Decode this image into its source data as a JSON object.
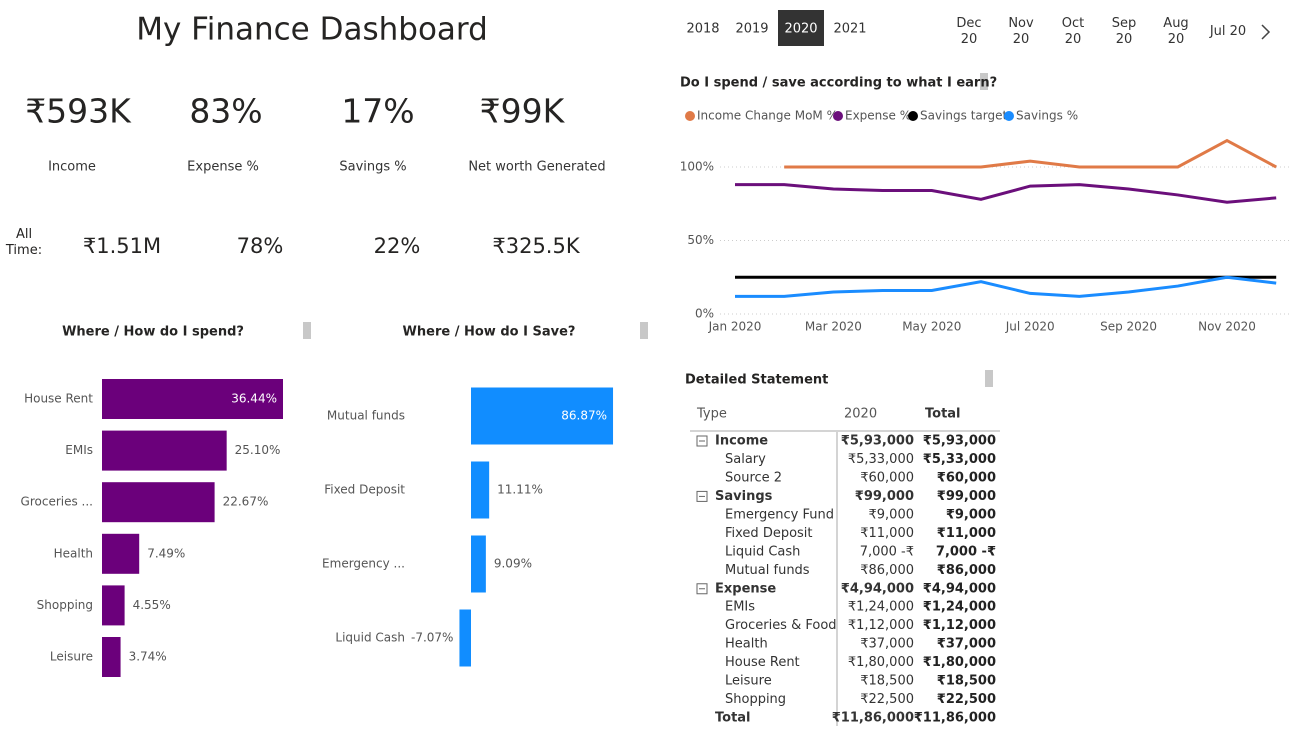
{
  "header": {
    "title": "My Finance Dashboard"
  },
  "year_slicer": {
    "years": [
      "2018",
      "2019",
      "2020",
      "2021"
    ],
    "selected": 2
  },
  "month_slicer": {
    "months": [
      "Dec 20",
      "Nov 20",
      "Oct 20",
      "Sep 20",
      "Aug 20",
      "Jul 20"
    ]
  },
  "kpis": [
    {
      "value": "₹593K",
      "label": "Income"
    },
    {
      "value": "83%",
      "label": "Expense %"
    },
    {
      "value": "17%",
      "label": "Savings %"
    },
    {
      "value": "₹99K",
      "label": "Net worth Generated"
    }
  ],
  "all_time": {
    "label": "All Time:",
    "values": [
      "₹1.51M",
      "78%",
      "22%",
      "₹325.5K"
    ]
  },
  "chart_data": [
    {
      "type": "line",
      "title": "Do I spend / save according to what I earn?",
      "categories": [
        "Jan 2020",
        null,
        "Mar 2020",
        null,
        "May 2020",
        null,
        "Jul 2020",
        null,
        "Sep 2020",
        null,
        "Nov 2020",
        null
      ],
      "series": [
        {
          "name": "Income Change MoM %",
          "color": "#e07a47",
          "values": [
            null,
            100,
            100,
            100,
            100,
            100,
            104,
            100,
            100,
            100,
            118,
            100
          ]
        },
        {
          "name": "Expense %",
          "color": "#6b0f7b",
          "values": [
            88,
            88,
            85,
            84,
            84,
            78,
            87,
            88,
            85,
            81,
            76,
            79
          ]
        },
        {
          "name": "Savings target",
          "color": "#000000",
          "values": [
            25,
            25,
            25,
            25,
            25,
            25,
            25,
            25,
            25,
            25,
            25,
            25
          ]
        },
        {
          "name": "Savings %",
          "color": "#1a8cff",
          "values": [
            12,
            12,
            15,
            16,
            16,
            22,
            14,
            12,
            15,
            19,
            25,
            21
          ]
        }
      ],
      "ylim": [
        0,
        120
      ],
      "yticks": [
        {
          "value": 0,
          "label": "0%"
        },
        {
          "value": 50,
          "label": "50%"
        },
        {
          "value": 100,
          "label": "100%"
        }
      ],
      "grid": true,
      "legend": "top"
    },
    {
      "type": "bar",
      "orientation": "horizontal",
      "title": "Where / How do I spend?",
      "categories": [
        "House Rent",
        "EMIs",
        "Groceries ...",
        "Health",
        "Shopping",
        "Leisure"
      ],
      "values": [
        36.44,
        25.1,
        22.67,
        7.49,
        4.55,
        3.74
      ],
      "value_labels": [
        "36.44%",
        "25.10%",
        "22.67%",
        "7.49%",
        "4.55%",
        "3.74%"
      ],
      "color": "#6b007b"
    },
    {
      "type": "bar",
      "orientation": "horizontal",
      "title": "Where / How do I Save?",
      "categories": [
        "Mutual funds",
        "Fixed Deposit",
        "Emergency ...",
        "Liquid Cash"
      ],
      "values": [
        86.87,
        11.11,
        9.09,
        -7.07
      ],
      "value_labels": [
        "86.87%",
        "11.11%",
        "9.09%",
        "-7.07%"
      ],
      "color": "#118dff"
    }
  ],
  "table": {
    "title": "Detailed Statement",
    "columns": [
      "Type",
      "2020",
      "Total"
    ],
    "rows": [
      {
        "kind": "group",
        "cells": [
          "Income",
          "₹5,93,000",
          "₹5,93,000"
        ]
      },
      {
        "kind": "item",
        "cells": [
          "Salary",
          "₹5,33,000",
          "₹5,33,000"
        ]
      },
      {
        "kind": "item",
        "cells": [
          "Source 2",
          "₹60,000",
          "₹60,000"
        ]
      },
      {
        "kind": "group",
        "cells": [
          "Savings",
          "₹99,000",
          "₹99,000"
        ]
      },
      {
        "kind": "item",
        "cells": [
          "Emergency Fund",
          "₹9,000",
          "₹9,000"
        ]
      },
      {
        "kind": "item",
        "cells": [
          "Fixed Deposit",
          "₹11,000",
          "₹11,000"
        ]
      },
      {
        "kind": "item",
        "cells": [
          "Liquid Cash",
          "7,000 -₹",
          "7,000 -₹"
        ]
      },
      {
        "kind": "item",
        "cells": [
          "Mutual funds",
          "₹86,000",
          "₹86,000"
        ]
      },
      {
        "kind": "group",
        "cells": [
          "Expense",
          "₹4,94,000",
          "₹4,94,000"
        ]
      },
      {
        "kind": "item",
        "cells": [
          "EMIs",
          "₹1,24,000",
          "₹1,24,000"
        ]
      },
      {
        "kind": "item",
        "cells": [
          "Groceries & Food",
          "₹1,12,000",
          "₹1,12,000"
        ]
      },
      {
        "kind": "item",
        "cells": [
          "Health",
          "₹37,000",
          "₹37,000"
        ]
      },
      {
        "kind": "item",
        "cells": [
          "House Rent",
          "₹1,80,000",
          "₹1,80,000"
        ]
      },
      {
        "kind": "item",
        "cells": [
          "Leisure",
          "₹18,500",
          "₹18,500"
        ]
      },
      {
        "kind": "item",
        "cells": [
          "Shopping",
          "₹22,500",
          "₹22,500"
        ]
      },
      {
        "kind": "total",
        "cells": [
          "Total",
          "₹11,86,000",
          "₹11,86,000"
        ]
      }
    ]
  }
}
